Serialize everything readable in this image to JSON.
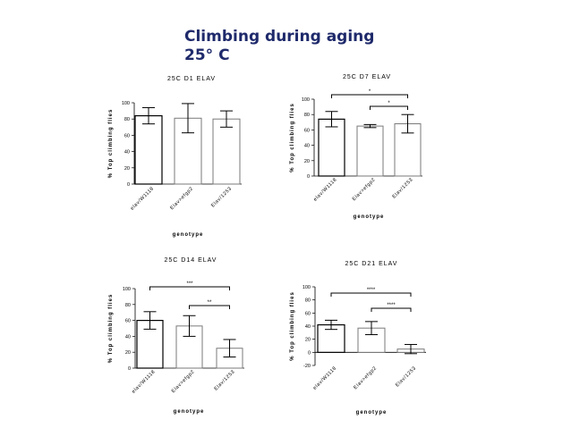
{
  "page": {
    "title_line1": "Climbing during aging",
    "title_line2": "25° C"
  },
  "chart_data": [
    {
      "type": "bar",
      "title": "25C D1 ELAV",
      "xlabel": "genotype",
      "ylabel": "% Top climbing flies",
      "ylim": [
        0,
        100
      ],
      "yticks": [
        0,
        20,
        40,
        60,
        80,
        100
      ],
      "categories": [
        "elav/W1118",
        "Elav>efgp2",
        "Elav/1253"
      ],
      "values": [
        84,
        81,
        80
      ],
      "errors": [
        10,
        18,
        10
      ],
      "significance": []
    },
    {
      "type": "bar",
      "title": "25C D7 ELAV",
      "xlabel": "genotype",
      "ylabel": "% Top climbing flies",
      "ylim": [
        0,
        100
      ],
      "yticks": [
        0,
        20,
        40,
        60,
        80,
        100
      ],
      "categories": [
        "elav/W1118",
        "Elav>efgp2",
        "Elav/1253"
      ],
      "values": [
        74,
        65,
        68
      ],
      "errors": [
        10,
        2,
        12
      ],
      "significance": [
        {
          "from": 0,
          "to": 2,
          "label": "*"
        },
        {
          "from": 1,
          "to": 2,
          "label": "*"
        }
      ]
    },
    {
      "type": "bar",
      "title": "25C D14 ELAV",
      "xlabel": "genotype",
      "ylabel": "% Top climbing flies",
      "ylim": [
        0,
        100
      ],
      "yticks": [
        0,
        20,
        40,
        60,
        80,
        100
      ],
      "categories": [
        "elav/W1118",
        "Elav>efgp2",
        "Elav/1253"
      ],
      "values": [
        60,
        53,
        25
      ],
      "errors": [
        11,
        13,
        11
      ],
      "significance": [
        {
          "from": 0,
          "to": 2,
          "label": "***"
        },
        {
          "from": 1,
          "to": 2,
          "label": "**"
        }
      ]
    },
    {
      "type": "bar",
      "title": "25C D21 ELAV",
      "xlabel": "genotype",
      "ylabel": "% Top climbing flies",
      "ylim": [
        -20,
        100
      ],
      "yticks": [
        -20,
        0,
        20,
        40,
        60,
        80,
        100
      ],
      "categories": [
        "elav/W1118",
        "Elav>efgp2",
        "Elav/1253"
      ],
      "values": [
        42,
        37,
        5
      ],
      "errors": [
        7,
        10,
        7
      ],
      "significance": [
        {
          "from": 0,
          "to": 2,
          "label": "****"
        },
        {
          "from": 1,
          "to": 2,
          "label": "****"
        }
      ]
    }
  ]
}
